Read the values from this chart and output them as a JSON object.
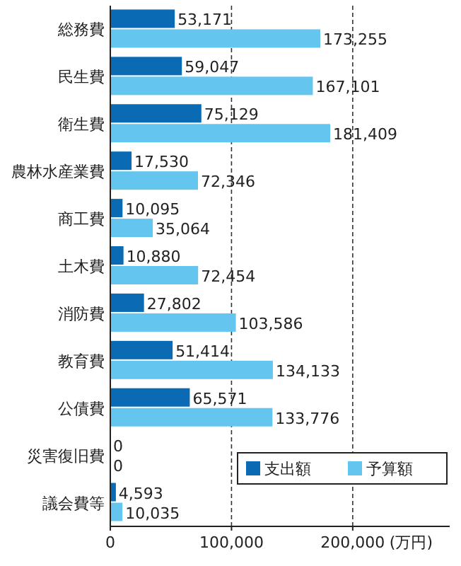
{
  "chart_data": {
    "type": "bar",
    "orientation": "horizontal",
    "categories": [
      "総務費",
      "民生費",
      "衛生費",
      "農林水産業費",
      "商工費",
      "土木費",
      "消防費",
      "教育費",
      "公債費",
      "災害復旧費",
      "議会費等"
    ],
    "series": [
      {
        "name": "支出額",
        "color": "#0a6ab4",
        "values": [
          53171,
          59047,
          75129,
          17530,
          10095,
          10880,
          27802,
          51414,
          65571,
          0,
          4593
        ],
        "value_labels": [
          "53,171",
          "59,047",
          "75,129",
          "17,530",
          "10,095",
          "10,880",
          "27,802",
          "51,414",
          "65,571",
          "0",
          "4,593"
        ]
      },
      {
        "name": "予算額",
        "color": "#64c6ef",
        "values": [
          173255,
          167101,
          181409,
          72346,
          35064,
          72454,
          103586,
          134133,
          133776,
          0,
          10035
        ],
        "value_labels": [
          "173,255",
          "167,101",
          "181,409",
          "72,346",
          "35,064",
          "72,454",
          "103,586",
          "134,133",
          "133,776",
          "0",
          "10,035"
        ]
      }
    ],
    "xlim": [
      0,
      280000
    ],
    "xticks": [
      {
        "value": 0,
        "label": "0"
      },
      {
        "value": 100000,
        "label": "100,000"
      },
      {
        "value": 200000,
        "label": "200,000"
      }
    ],
    "xlabel": "(万円)",
    "grid": "x",
    "legend": "bottom right"
  }
}
